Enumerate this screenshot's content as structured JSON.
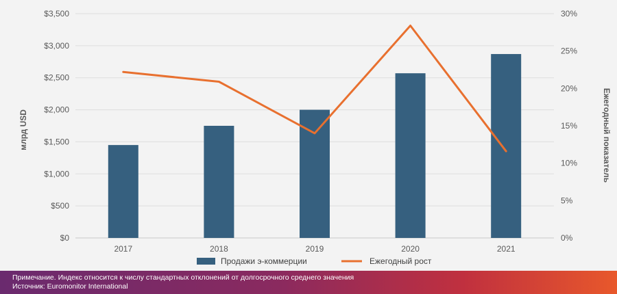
{
  "chart_data": {
    "type": "bar+line",
    "categories": [
      "2017",
      "2018",
      "2019",
      "2020",
      "2021"
    ],
    "series": [
      {
        "name": "Продажи э-коммерции",
        "type": "bar",
        "axis": "left",
        "values": [
          1450,
          1750,
          2000,
          2570,
          2870
        ],
        "color": "#36607f"
      },
      {
        "name": "Ежегодный рост",
        "type": "line",
        "axis": "right",
        "values": [
          22.2,
          20.9,
          14.0,
          28.4,
          11.6
        ],
        "color": "#e8702f"
      }
    ],
    "y_left": {
      "label": "млрд USD",
      "min": 0,
      "max": 3500,
      "step": 500,
      "ticks": [
        "$0",
        "$500",
        "$1,000",
        "$1,500",
        "$2,000",
        "$2,500",
        "$3,000",
        "$3,500"
      ]
    },
    "y_right": {
      "label": "Ежегодный показатель",
      "min": 0,
      "max": 30,
      "step": 5,
      "ticks": [
        "0%",
        "5%",
        "10%",
        "15%",
        "20%",
        "25%",
        "30%"
      ]
    },
    "grid": true,
    "legend": "bottom"
  },
  "footer": {
    "note": "Примечание. Индекс относится к числу стандартных отклонений от долгосрочного среднего значения",
    "source": "Источник: Euromonitor International"
  }
}
